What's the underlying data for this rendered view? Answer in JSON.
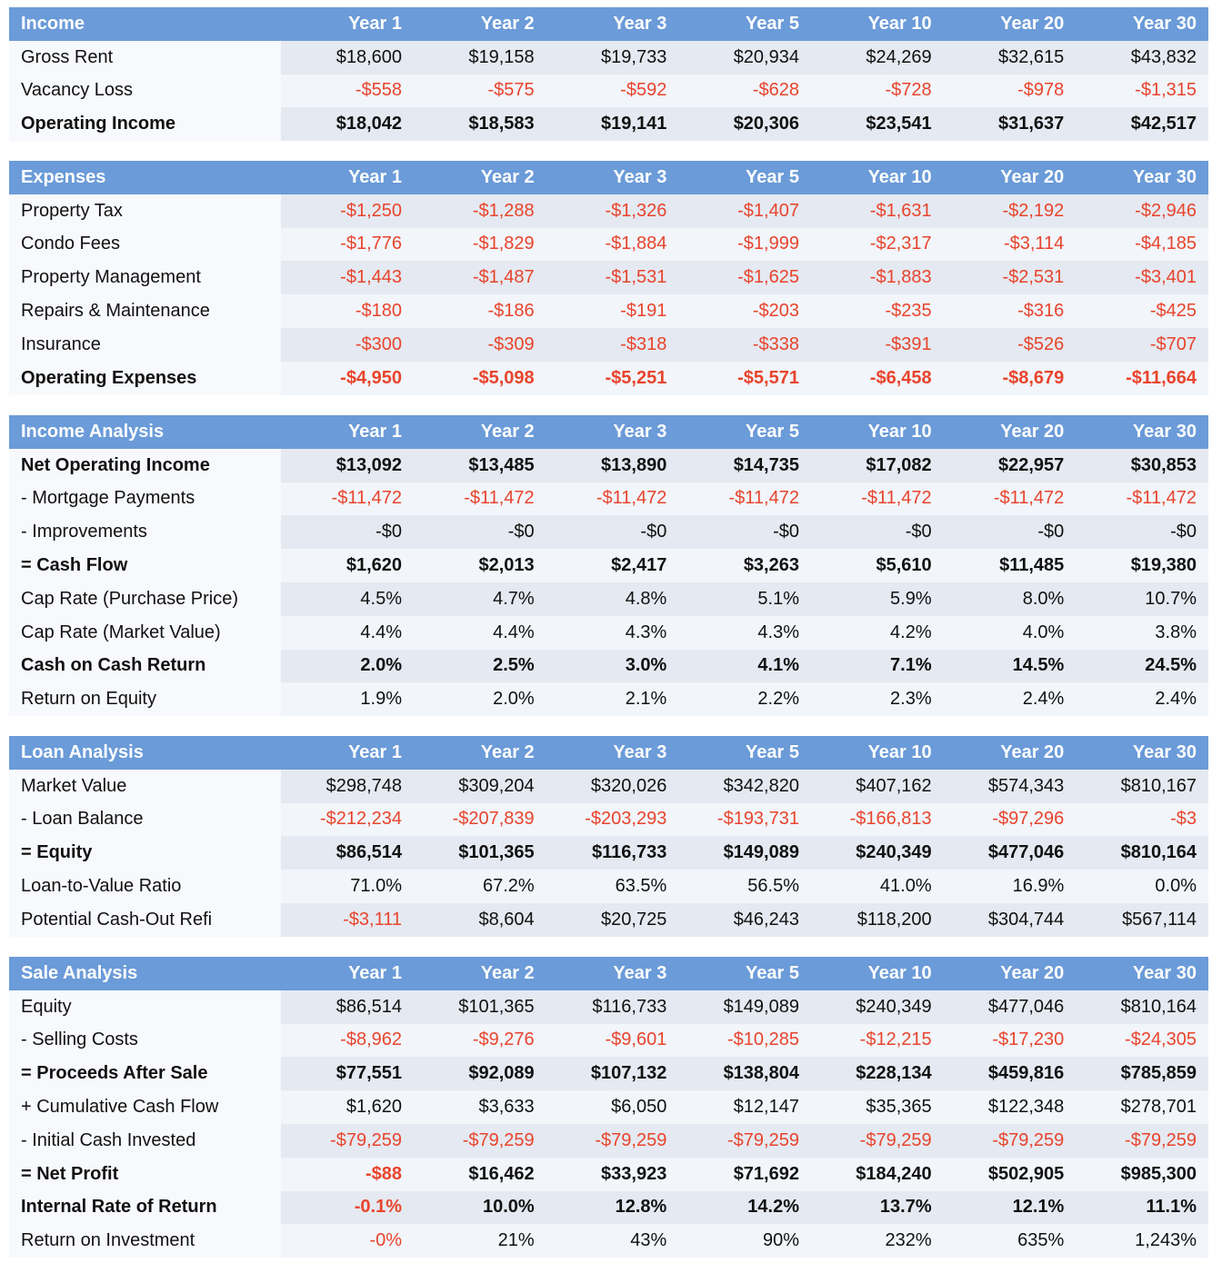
{
  "year_headers": [
    "Year 1",
    "Year 2",
    "Year 3",
    "Year 5",
    "Year 10",
    "Year 20",
    "Year 30"
  ],
  "colors": {
    "header_bg": "#6b9bd8",
    "header_text": "#ffffff",
    "negative": "#e8442c",
    "row_shade": "#e5e9f1"
  },
  "sections": [
    {
      "id": "income",
      "title": "Income",
      "rows": [
        {
          "label": "Gross Rent",
          "bold": false,
          "values": [
            "$18,600",
            "$19,158",
            "$19,733",
            "$20,934",
            "$24,269",
            "$32,615",
            "$43,832"
          ]
        },
        {
          "label": "Vacancy Loss",
          "bold": false,
          "values": [
            "-$558",
            "-$575",
            "-$592",
            "-$628",
            "-$728",
            "-$978",
            "-$1,315"
          ]
        },
        {
          "label": "Operating Income",
          "bold": true,
          "values": [
            "$18,042",
            "$18,583",
            "$19,141",
            "$20,306",
            "$23,541",
            "$31,637",
            "$42,517"
          ]
        }
      ]
    },
    {
      "id": "expenses",
      "title": "Expenses",
      "rows": [
        {
          "label": "Property Tax",
          "bold": false,
          "values": [
            "-$1,250",
            "-$1,288",
            "-$1,326",
            "-$1,407",
            "-$1,631",
            "-$2,192",
            "-$2,946"
          ]
        },
        {
          "label": "Condo Fees",
          "bold": false,
          "values": [
            "-$1,776",
            "-$1,829",
            "-$1,884",
            "-$1,999",
            "-$2,317",
            "-$3,114",
            "-$4,185"
          ]
        },
        {
          "label": "Property Management",
          "bold": false,
          "values": [
            "-$1,443",
            "-$1,487",
            "-$1,531",
            "-$1,625",
            "-$1,883",
            "-$2,531",
            "-$3,401"
          ]
        },
        {
          "label": "Repairs & Maintenance",
          "bold": false,
          "values": [
            "-$180",
            "-$186",
            "-$191",
            "-$203",
            "-$235",
            "-$316",
            "-$425"
          ]
        },
        {
          "label": "Insurance",
          "bold": false,
          "values": [
            "-$300",
            "-$309",
            "-$318",
            "-$338",
            "-$391",
            "-$526",
            "-$707"
          ]
        },
        {
          "label": "Operating Expenses",
          "bold": true,
          "values": [
            "-$4,950",
            "-$5,098",
            "-$5,251",
            "-$5,571",
            "-$6,458",
            "-$8,679",
            "-$11,664"
          ]
        }
      ]
    },
    {
      "id": "income-analysis",
      "title": "Income Analysis",
      "rows": [
        {
          "label": "Net Operating Income",
          "bold": true,
          "values": [
            "$13,092",
            "$13,485",
            "$13,890",
            "$14,735",
            "$17,082",
            "$22,957",
            "$30,853"
          ]
        },
        {
          "label": "- Mortgage Payments",
          "bold": false,
          "values": [
            "-$11,472",
            "-$11,472",
            "-$11,472",
            "-$11,472",
            "-$11,472",
            "-$11,472",
            "-$11,472"
          ]
        },
        {
          "label": "- Improvements",
          "bold": false,
          "neutral": true,
          "values": [
            "-$0",
            "-$0",
            "-$0",
            "-$0",
            "-$0",
            "-$0",
            "-$0"
          ]
        },
        {
          "label": "= Cash Flow",
          "bold": true,
          "values": [
            "$1,620",
            "$2,013",
            "$2,417",
            "$3,263",
            "$5,610",
            "$11,485",
            "$19,380"
          ]
        },
        {
          "label": "Cap Rate (Purchase Price)",
          "bold": false,
          "values": [
            "4.5%",
            "4.7%",
            "4.8%",
            "5.1%",
            "5.9%",
            "8.0%",
            "10.7%"
          ]
        },
        {
          "label": "Cap Rate (Market Value)",
          "bold": false,
          "values": [
            "4.4%",
            "4.4%",
            "4.3%",
            "4.3%",
            "4.2%",
            "4.0%",
            "3.8%"
          ]
        },
        {
          "label": "Cash on Cash Return",
          "bold": true,
          "values": [
            "2.0%",
            "2.5%",
            "3.0%",
            "4.1%",
            "7.1%",
            "14.5%",
            "24.5%"
          ]
        },
        {
          "label": "Return on Equity",
          "bold": false,
          "values": [
            "1.9%",
            "2.0%",
            "2.1%",
            "2.2%",
            "2.3%",
            "2.4%",
            "2.4%"
          ]
        }
      ]
    },
    {
      "id": "loan-analysis",
      "title": "Loan Analysis",
      "rows": [
        {
          "label": "Market Value",
          "bold": false,
          "values": [
            "$298,748",
            "$309,204",
            "$320,026",
            "$342,820",
            "$407,162",
            "$574,343",
            "$810,167"
          ]
        },
        {
          "label": "- Loan Balance",
          "bold": false,
          "values": [
            "-$212,234",
            "-$207,839",
            "-$203,293",
            "-$193,731",
            "-$166,813",
            "-$97,296",
            "-$3"
          ]
        },
        {
          "label": "= Equity",
          "bold": true,
          "values": [
            "$86,514",
            "$101,365",
            "$116,733",
            "$149,089",
            "$240,349",
            "$477,046",
            "$810,164"
          ]
        },
        {
          "label": "Loan-to-Value Ratio",
          "bold": false,
          "values": [
            "71.0%",
            "67.2%",
            "63.5%",
            "56.5%",
            "41.0%",
            "16.9%",
            "0.0%"
          ]
        },
        {
          "label": "Potential Cash-Out Refi",
          "bold": false,
          "values": [
            "-$3,111",
            "$8,604",
            "$20,725",
            "$46,243",
            "$118,200",
            "$304,744",
            "$567,114"
          ]
        }
      ]
    },
    {
      "id": "sale-analysis",
      "title": "Sale Analysis",
      "rows": [
        {
          "label": "Equity",
          "bold": false,
          "values": [
            "$86,514",
            "$101,365",
            "$116,733",
            "$149,089",
            "$240,349",
            "$477,046",
            "$810,164"
          ]
        },
        {
          "label": "- Selling Costs",
          "bold": false,
          "values": [
            "-$8,962",
            "-$9,276",
            "-$9,601",
            "-$10,285",
            "-$12,215",
            "-$17,230",
            "-$24,305"
          ]
        },
        {
          "label": "= Proceeds After Sale",
          "bold": true,
          "values": [
            "$77,551",
            "$92,089",
            "$107,132",
            "$138,804",
            "$228,134",
            "$459,816",
            "$785,859"
          ]
        },
        {
          "label": "+ Cumulative Cash Flow",
          "bold": false,
          "values": [
            "$1,620",
            "$3,633",
            "$6,050",
            "$12,147",
            "$35,365",
            "$122,348",
            "$278,701"
          ]
        },
        {
          "label": "- Initial Cash Invested",
          "bold": false,
          "values": [
            "-$79,259",
            "-$79,259",
            "-$79,259",
            "-$79,259",
            "-$79,259",
            "-$79,259",
            "-$79,259"
          ]
        },
        {
          "label": "= Net Profit",
          "bold": true,
          "values": [
            "-$88",
            "$16,462",
            "$33,923",
            "$71,692",
            "$184,240",
            "$502,905",
            "$985,300"
          ]
        },
        {
          "label": "Internal Rate of Return",
          "bold": true,
          "values": [
            "-0.1%",
            "10.0%",
            "12.8%",
            "14.2%",
            "13.7%",
            "12.1%",
            "11.1%"
          ]
        },
        {
          "label": "Return on Investment",
          "bold": false,
          "values": [
            "-0%",
            "21%",
            "43%",
            "90%",
            "232%",
            "635%",
            "1,243%"
          ]
        }
      ]
    }
  ]
}
